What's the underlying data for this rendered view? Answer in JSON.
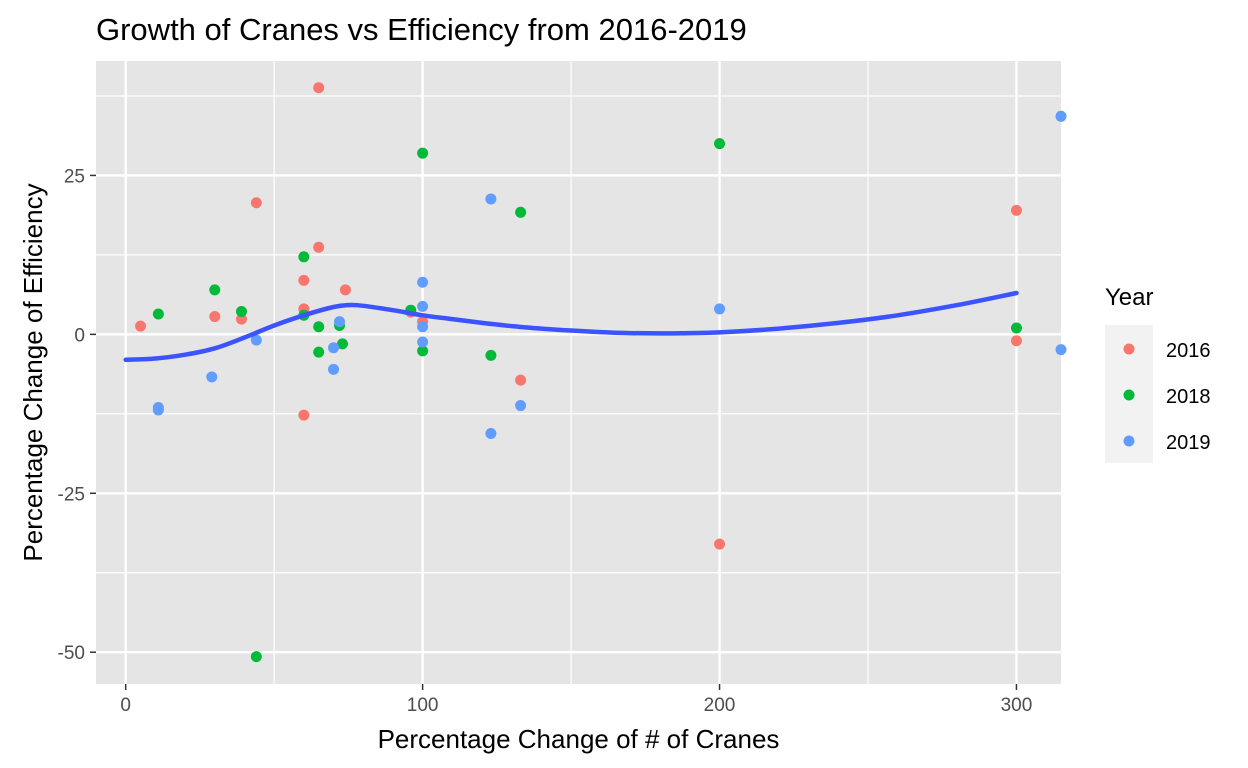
{
  "chart_data": {
    "type": "scatter",
    "title": "Growth of Cranes vs Efficiency from 2016-2019",
    "xlabel": "Percentage Change of # of Cranes",
    "ylabel": "Percentage Change of Efficiency",
    "xlim": [
      -10,
      315
    ],
    "ylim": [
      -55,
      43
    ],
    "x_ticks": [
      0,
      100,
      200,
      300
    ],
    "x_tick_labels": [
      "0",
      "100",
      "200",
      "300"
    ],
    "x_minor_ticks": [
      50,
      150,
      250
    ],
    "y_ticks": [
      -50,
      -25,
      0,
      25
    ],
    "y_tick_labels": [
      "-50",
      "-25",
      "0",
      "25"
    ],
    "y_minor_ticks": [
      -37.5,
      -12.5,
      12.5,
      37.5
    ],
    "grid": true,
    "panel_background": "#e5e5e5",
    "grid_color": "#ffffff",
    "legend": {
      "title": "Year",
      "position": "right"
    },
    "series": [
      {
        "name": "2016",
        "color": "#f8766d",
        "points": [
          [
            5,
            1.3
          ],
          [
            30,
            2.8
          ],
          [
            39,
            2.4
          ],
          [
            44,
            20.7
          ],
          [
            60,
            8.5
          ],
          [
            60,
            4.0
          ],
          [
            60,
            -12.7
          ],
          [
            65,
            13.7
          ],
          [
            65,
            38.8
          ],
          [
            74,
            7.0
          ],
          [
            96,
            3.5
          ],
          [
            100,
            2.0
          ],
          [
            133,
            -7.2
          ],
          [
            200,
            -33.0
          ],
          [
            300,
            19.5
          ],
          [
            300,
            -1.0
          ]
        ]
      },
      {
        "name": "2018",
        "color": "#00ba38",
        "points": [
          [
            11,
            3.2
          ],
          [
            30,
            7.0
          ],
          [
            39,
            3.6
          ],
          [
            44,
            -50.7
          ],
          [
            60,
            12.2
          ],
          [
            60,
            3.0
          ],
          [
            65,
            1.2
          ],
          [
            65,
            -2.8
          ],
          [
            72,
            1.4
          ],
          [
            73,
            -1.5
          ],
          [
            96,
            3.8
          ],
          [
            100,
            28.5
          ],
          [
            100,
            -2.6
          ],
          [
            123,
            -3.3
          ],
          [
            133,
            19.2
          ],
          [
            200,
            30.0
          ],
          [
            300,
            1.0
          ]
        ]
      },
      {
        "name": "2019",
        "color": "#619cff",
        "points": [
          [
            11,
            -11.5
          ],
          [
            11,
            -11.9
          ],
          [
            29,
            -6.7
          ],
          [
            44,
            -0.9
          ],
          [
            70,
            -2.1
          ],
          [
            70,
            -5.5
          ],
          [
            72,
            2.0
          ],
          [
            100,
            8.2
          ],
          [
            100,
            4.4
          ],
          [
            100,
            1.2
          ],
          [
            100,
            -1.2
          ],
          [
            123,
            21.3
          ],
          [
            123,
            -15.6
          ],
          [
            133,
            -11.2
          ],
          [
            200,
            4.0
          ],
          [
            315,
            34.3
          ],
          [
            315,
            -2.4
          ]
        ]
      }
    ],
    "smooth": {
      "color": "#3b54ff",
      "x": [
        0,
        10,
        20,
        30,
        40,
        50,
        60,
        70,
        75,
        80,
        90,
        100,
        110,
        120,
        130,
        140,
        150,
        160,
        170,
        180,
        190,
        200,
        220,
        240,
        260,
        280,
        300
      ],
      "y": [
        -4.0,
        -3.8,
        -3.2,
        -2.2,
        -0.5,
        1.4,
        3.0,
        4.3,
        4.6,
        4.5,
        3.8,
        3.0,
        2.4,
        1.8,
        1.3,
        0.9,
        0.6,
        0.35,
        0.2,
        0.15,
        0.2,
        0.3,
        0.9,
        1.8,
        3.0,
        4.6,
        6.5
      ]
    }
  }
}
